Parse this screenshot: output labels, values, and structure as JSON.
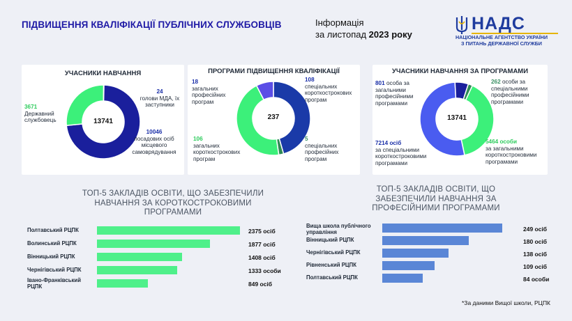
{
  "header": {
    "title": "ПІДВИЩЕННЯ КВАЛІФІКАЦІЇ ПУБЛІЧНИХ СЛУЖБОВЦІВ",
    "info_line1": "Інформація",
    "info_line2_prefix": "за листопад ",
    "info_line2_bold": "2023 року",
    "logo_name": "НАДС",
    "logo_sub_line1": "НАЦІОНАЛЬНЕ АГЕНТСТВО УКРАЇНИ",
    "logo_sub_line2": "З ПИТАНЬ ДЕРЖАВНОЇ СЛУЖБИ"
  },
  "colors": {
    "navy": "#1a1f9c",
    "green": "#3cf07a",
    "blue_light": "#4a5cf0",
    "purple": "#5b4ee6",
    "dark_green": "#2f8a55",
    "bar_green": "#4ff08a",
    "bar_blue": "#5a86d6"
  },
  "chart_data": [
    {
      "type": "pie",
      "title": "УЧАСНИКИ НАВЧАННЯ",
      "total": "13741",
      "slices": [
        {
          "value": 24,
          "number": "24",
          "label": "голови МДА, їх заступники",
          "color": "#5b4ee6"
        },
        {
          "value": 10046,
          "number": "10046",
          "label": "посадових осіб місцевого самоврядування",
          "color": "#1a1f9c"
        },
        {
          "value": 3671,
          "number": "3671",
          "label": "Державний службовець",
          "color": "#3cf07a"
        }
      ]
    },
    {
      "type": "pie",
      "title": "ПРОГРАМИ ПІДВИЩЕННЯ КВАЛІФІКАЦІЇ",
      "total": "237",
      "slices": [
        {
          "value": 108,
          "number": "108",
          "label": "спеціальних короткострокових програм",
          "color": "#1a3aa8"
        },
        {
          "value": 5,
          "number": "5",
          "label": "спеціальних професійних програм",
          "color": "#2f8a55"
        },
        {
          "value": 106,
          "number": "106",
          "label": "загальних короткострокових програм",
          "color": "#3cf07a"
        },
        {
          "value": 18,
          "number": "18",
          "label": "загальних професійних програм",
          "color": "#5b4ee6"
        }
      ]
    },
    {
      "type": "pie",
      "title": "УЧАСНИКИ НАВЧАННЯ ЗА ПРОГРАМАМИ",
      "total": "13741",
      "slices": [
        {
          "value": 262,
          "number": "262",
          "label": "особи за спеціальними професійними програмами",
          "color": "#2f8a55"
        },
        {
          "value": 5464,
          "number": "5464 особи",
          "label": "за загальними короткостроковими програмами",
          "color": "#3cf07a"
        },
        {
          "value": 7214,
          "number": "7214 осіб",
          "label": "за спеціальними короткостроковими програмами",
          "color": "#4a5cf0"
        },
        {
          "value": 801,
          "number": "801",
          "label": "особа за загальними професійними програмами",
          "color": "#1a1f9c"
        }
      ]
    },
    {
      "type": "bar",
      "title": "ТОП-5 ЗАКЛАДІВ ОСВІТИ, ЩО ЗАБЕЗПЕЧИЛИ НАВЧАННЯ ЗА КОРОТКОСТРОКОВИМИ ПРОГРАМАМИ",
      "categories": [
        "Полтавський РЦПК",
        "Волинський РЦПК",
        "Вінницький РЦПК",
        "Чернігівський РЦПК",
        "Івано-Франківський РЦПК"
      ],
      "values": [
        2375,
        1877,
        1408,
        1333,
        849
      ],
      "value_labels": [
        "2375 осіб",
        "1877 осіб",
        "1408 осіб",
        "1333 особи",
        "849 осіб"
      ],
      "color": "#4ff08a"
    },
    {
      "type": "bar",
      "title": "ТОП-5 ЗАКЛАДІВ ОСВІТИ, ЩО ЗАБЕЗПЕЧИЛИ НАВЧАННЯ ЗА ПРОФЕСІЙНИМИ ПРОГРАМАМИ",
      "categories": [
        "Вища школа публічного управління",
        "Вінницький РЦПК",
        "Чернігівський РЦПК",
        "Рівненський РЦПК",
        "Полтавський РЦПК"
      ],
      "values": [
        249,
        180,
        138,
        109,
        84
      ],
      "value_labels": [
        "249 осіб",
        "180 осіб",
        "138 осіб",
        "109 осіб",
        "84 особи"
      ],
      "color": "#5a86d6"
    }
  ],
  "footnote": "*За даними Вищої школи, РЦПК"
}
